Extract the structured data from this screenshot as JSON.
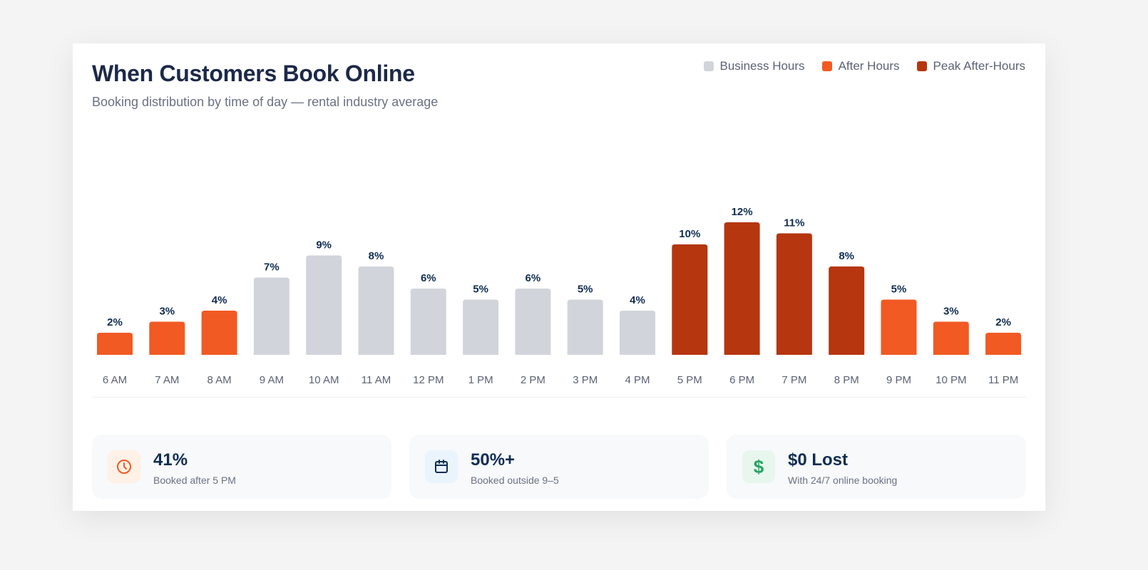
{
  "header": {
    "title": "When Customers Book Online",
    "subtitle": "Booking distribution by time of day — rental industry average"
  },
  "legend": [
    {
      "label": "Business Hours",
      "color": "#d1d5db"
    },
    {
      "label": "After Hours",
      "color": "#f15a22"
    },
    {
      "label": "Peak After-Hours",
      "color": "#b5360f"
    }
  ],
  "chart_data": {
    "type": "bar",
    "categories": [
      "6 AM",
      "7 AM",
      "8 AM",
      "9 AM",
      "10 AM",
      "11 AM",
      "12 PM",
      "1 PM",
      "2 PM",
      "3 PM",
      "4 PM",
      "5 PM",
      "6 PM",
      "7 PM",
      "8 PM",
      "9 PM",
      "10 PM",
      "11 PM"
    ],
    "values": [
      2,
      3,
      4,
      7,
      9,
      8,
      6,
      5,
      6,
      5,
      4,
      10,
      12,
      11,
      8,
      5,
      3,
      2
    ],
    "value_labels": [
      "2%",
      "3%",
      "4%",
      "7%",
      "9%",
      "8%",
      "6%",
      "5%",
      "6%",
      "5%",
      "4%",
      "10%",
      "12%",
      "11%",
      "8%",
      "5%",
      "3%",
      "2%"
    ],
    "groups": [
      1,
      1,
      1,
      0,
      0,
      0,
      0,
      0,
      0,
      0,
      0,
      2,
      2,
      2,
      2,
      1,
      1,
      1
    ],
    "unit": "%",
    "grid": false,
    "legend_position": "top-right",
    "title": "When Customers Book Online",
    "subtitle": "Booking distribution by time of day — rental industry average"
  },
  "stats": [
    {
      "value": "41%",
      "label": "Booked after 5 PM",
      "icon": "clock-icon",
      "color": "#f15a22",
      "bg": "#fff1e6"
    },
    {
      "value": "50%+",
      "label": "Booked outside 9–5",
      "icon": "calendar-icon",
      "color": "#0f2d52",
      "bg": "#eaf4fc"
    },
    {
      "value": "$0 Lost",
      "label": "With 24/7 online booking",
      "icon": "dollar-icon",
      "color": "#22a45d",
      "bg": "#e8f7ee"
    }
  ]
}
